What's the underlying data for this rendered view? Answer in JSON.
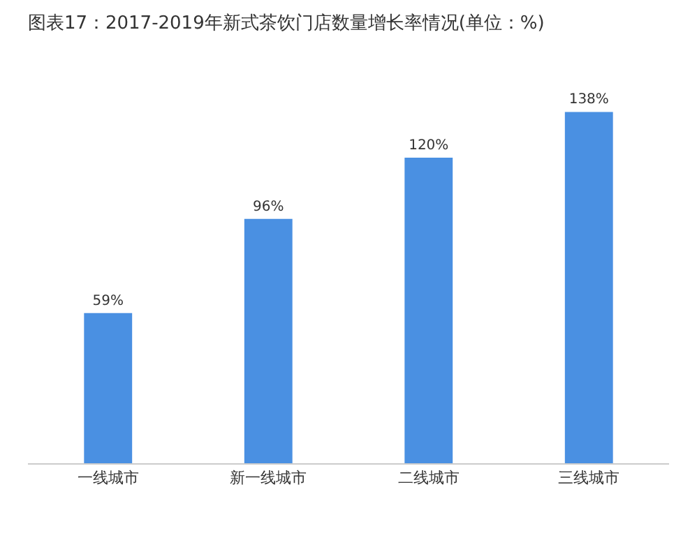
{
  "chart_data": {
    "type": "bar",
    "title": "图表17：2017-2019年新式茶饮门店数量增长率情况(单位：%)",
    "categories": [
      "一线城市",
      "新一线城市",
      "二线城市",
      "三线城市"
    ],
    "values": [
      59,
      96,
      120,
      138
    ],
    "value_labels": [
      "59%",
      "96%",
      "120%",
      "138%"
    ],
    "color": "#4a90e2"
  }
}
